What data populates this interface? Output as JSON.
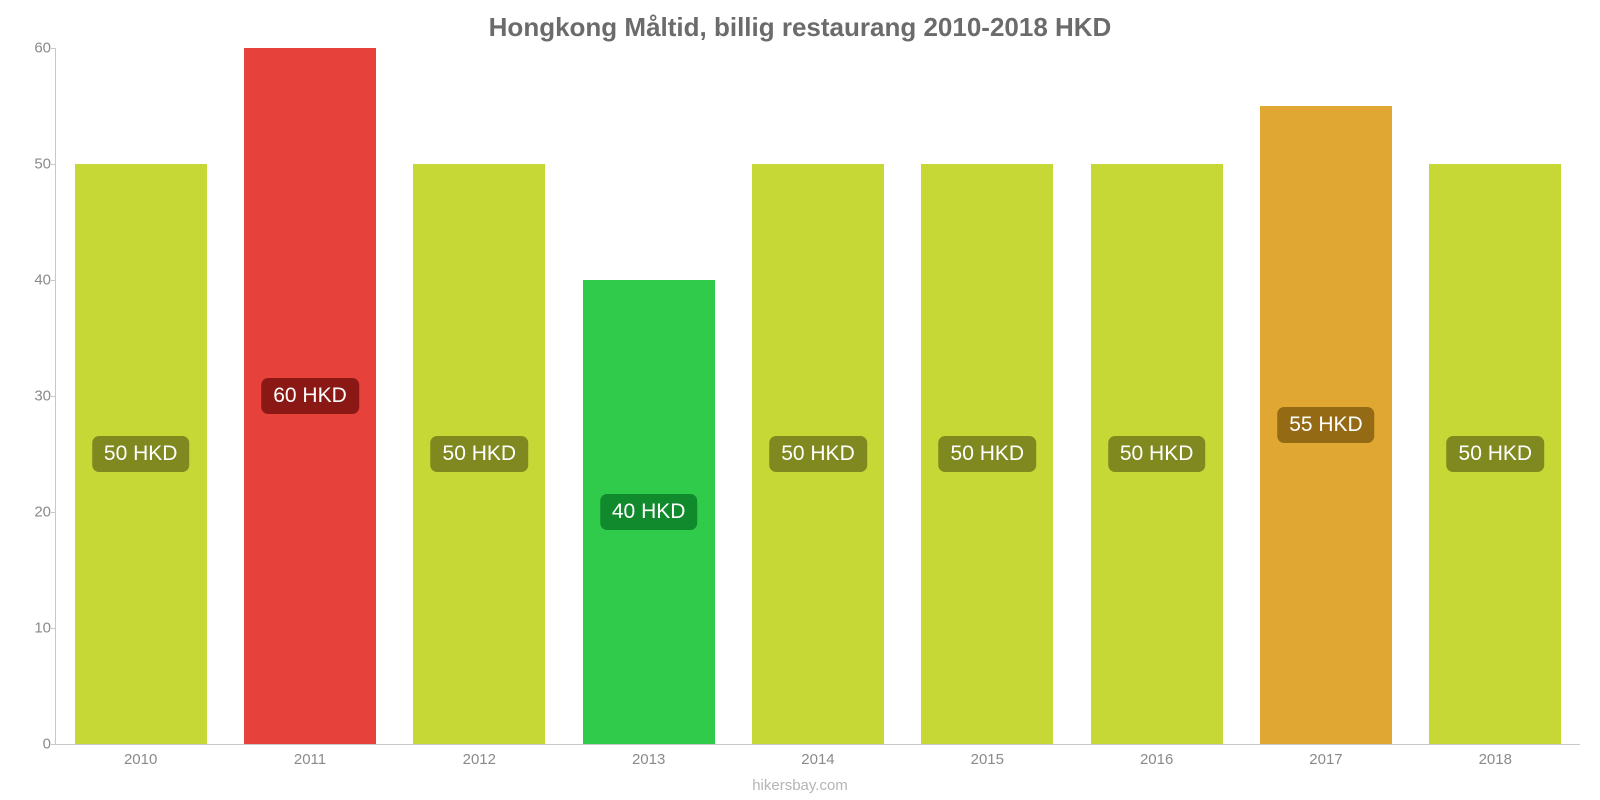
{
  "chart": {
    "type": "bar",
    "title": "Hongkong Måltid, billig restaurang 2010-2018 HKD",
    "title_color": "#6b6b6b",
    "title_fontsize": 26,
    "background_color": "#ffffff",
    "axis_color": "#c8c8c8",
    "tick_label_color": "#8a8a8a",
    "tick_fontsize": 15,
    "bar_label_fontsize": 21,
    "bar_label_text_color": "#ffffff",
    "bar_width_ratio": 0.78,
    "ylim": [
      0,
      60
    ],
    "yticks": [
      0,
      10,
      20,
      30,
      40,
      50,
      60
    ],
    "categories": [
      "2010",
      "2011",
      "2012",
      "2013",
      "2014",
      "2015",
      "2016",
      "2017",
      "2018"
    ],
    "values": [
      50,
      60,
      50,
      40,
      50,
      50,
      50,
      55,
      50
    ],
    "value_labels": [
      "50 HKD",
      "60 HKD",
      "50 HKD",
      "40 HKD",
      "50 HKD",
      "50 HKD",
      "50 HKD",
      "55 HKD",
      "50 HKD"
    ],
    "bar_colors": [
      "#c6d836",
      "#e7413c",
      "#c6d836",
      "#31cb4b",
      "#c6d836",
      "#c6d836",
      "#c6d836",
      "#e0a732",
      "#c6d836"
    ],
    "label_bg_colors": [
      "#7f891f",
      "#8a1916",
      "#7f891f",
      "#118a2d",
      "#7f891f",
      "#7f891f",
      "#7f891f",
      "#946a14",
      "#7f891f"
    ],
    "attribution": "hikersbay.com",
    "attribution_color": "#b5b5b5"
  }
}
